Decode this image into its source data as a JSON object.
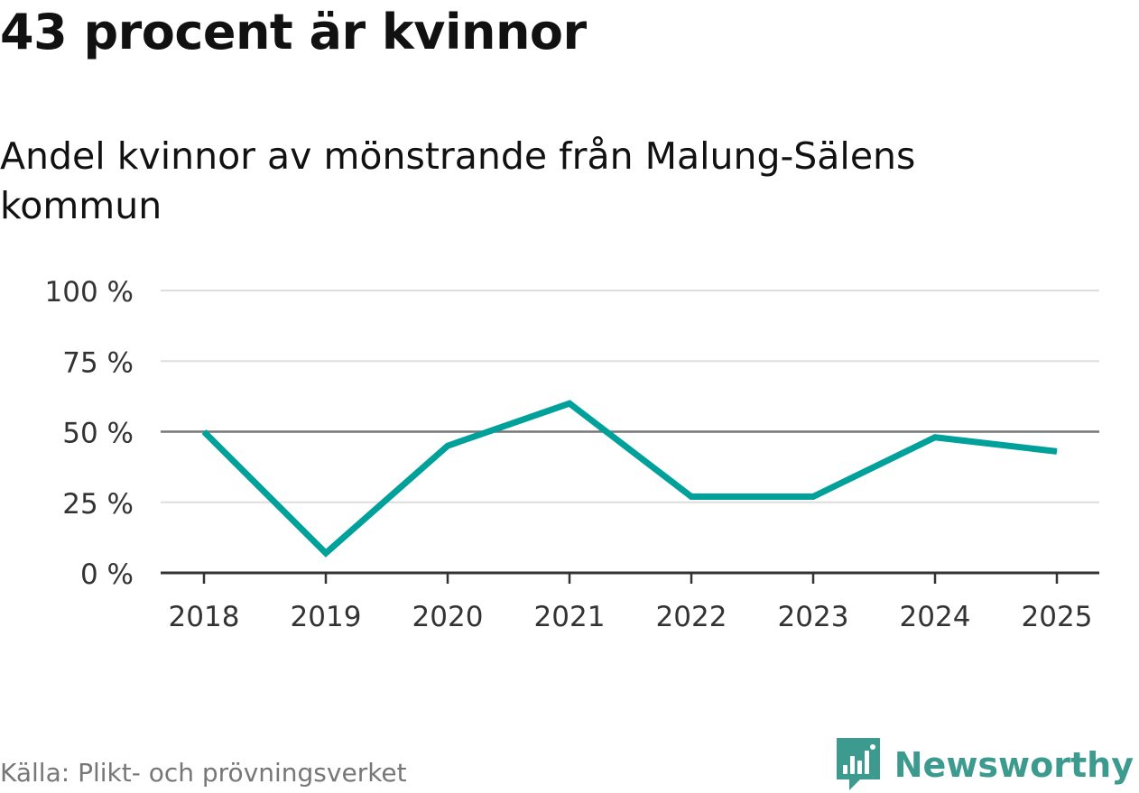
{
  "title": "43 procent är kvinnor",
  "subtitle": "Andel kvinnor av mönstrande från Malung-Sälens kommun",
  "source": "Källa: Plikt- och prövningsverket",
  "brand": {
    "name": "Newsworthy",
    "icon": "newsworthy-logo-icon",
    "color": "#3c9a8e"
  },
  "chart_data": {
    "type": "line",
    "title": "43 procent är kvinnor",
    "subtitle": "Andel kvinnor av mönstrande från Malung-Sälens kommun",
    "xlabel": "",
    "ylabel": "",
    "categories": [
      "2018",
      "2019",
      "2020",
      "2021",
      "2022",
      "2023",
      "2024",
      "2025"
    ],
    "series": [
      {
        "name": "Andel kvinnor",
        "values": [
          50,
          7,
          45,
          60,
          27,
          27,
          48,
          43
        ],
        "color": "#00a19a"
      }
    ],
    "ylim": [
      0,
      100
    ],
    "yticks": [
      0,
      25,
      50,
      75,
      100
    ],
    "ytick_labels": [
      "0 %",
      "25 %",
      "50 %",
      "75 %",
      "100 %"
    ],
    "reference_line": 50,
    "grid": true,
    "legend": "none"
  }
}
